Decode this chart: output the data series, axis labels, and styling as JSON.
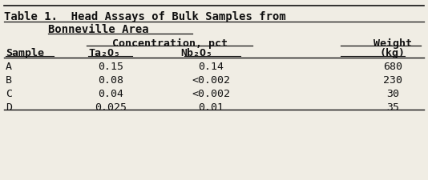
{
  "title_line1": "Table 1.  Head Assays of Bulk Samples from",
  "title_line2": "Bonneville Area",
  "col_header_group": "Concentration, pct",
  "col_header_weight": "Weight",
  "col_header_weight2": "(kg)",
  "col_header_sample": "Sample",
  "col_header_ta": "Ta₂O₅",
  "col_header_nb": "Nb₂O₅",
  "rows": [
    [
      "A",
      "0.15",
      "0.14",
      "680"
    ],
    [
      "B",
      "0.08",
      "<0.002",
      "230"
    ],
    [
      "C",
      "0.04",
      "<0.002",
      "30"
    ],
    [
      "D",
      "0.025",
      "0.01",
      "35"
    ]
  ],
  "bg_color": "#f0ede4",
  "font_color": "#111111",
  "font_family": "monospace",
  "font_size": 9.5,
  "title_font_size": 10.0
}
